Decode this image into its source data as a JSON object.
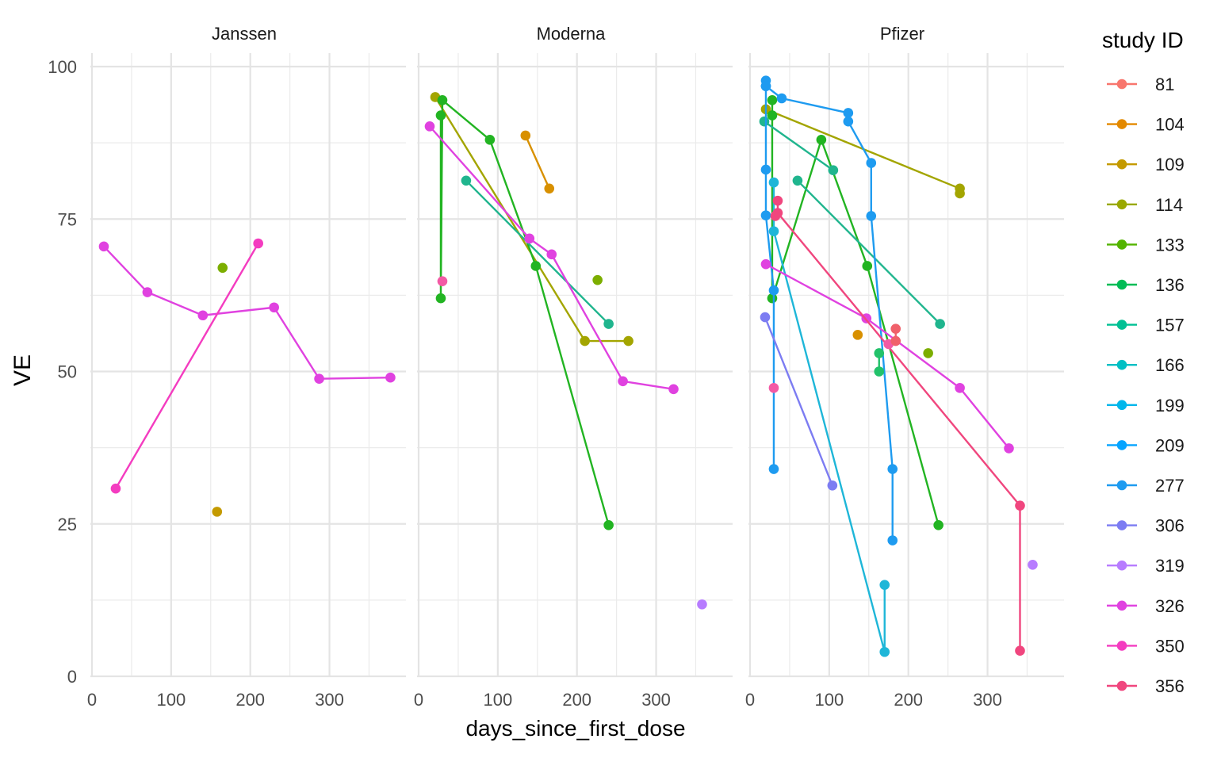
{
  "chart_data": {
    "type": "line",
    "facets": [
      "Janssen",
      "Moderna",
      "Pfizer"
    ],
    "xlabel": "days_since_first_dose",
    "ylabel": "VE",
    "xlim": [
      0,
      395
    ],
    "ylim": [
      0,
      100
    ],
    "x_ticks": [
      0,
      100,
      200,
      300
    ],
    "y_ticks": [
      0,
      25,
      50,
      75,
      100
    ],
    "grid": true,
    "legend": {
      "title": "study ID",
      "position": "right",
      "entries": [
        {
          "id": "81",
          "color": "#F8766D"
        },
        {
          "id": "104",
          "color": "#E38900"
        },
        {
          "id": "109",
          "color": "#C49A00"
        },
        {
          "id": "114",
          "color": "#99A800"
        },
        {
          "id": "133",
          "color": "#53B400"
        },
        {
          "id": "136",
          "color": "#00BC56"
        },
        {
          "id": "157",
          "color": "#00C094"
        },
        {
          "id": "166",
          "color": "#00BFC4"
        },
        {
          "id": "199",
          "color": "#00B6EB"
        },
        {
          "id": "209",
          "color": "#06A4FF"
        },
        {
          "id": "277",
          "color": "#A58AFF"
        },
        {
          "id": "306",
          "color": "#DF70F8"
        },
        {
          "id": "319",
          "color": "#FB61D7"
        },
        {
          "id": "326",
          "color": "#FF66A8"
        },
        {
          "id": "350",
          "color": "#F8766D"
        },
        {
          "id": "356",
          "color": "#E38900"
        }
      ]
    },
    "series": [
      {
        "facet": "Janssen",
        "color": "#E042E0",
        "x": [
          15,
          70,
          140,
          230,
          287,
          377
        ],
        "y": [
          70.5,
          63,
          59.2,
          60.5,
          48.8,
          49
        ]
      },
      {
        "facet": "Janssen",
        "color": "#F43CC0",
        "x": [
          30,
          210
        ],
        "y": [
          30.8,
          71
        ]
      },
      {
        "facet": "Janssen",
        "color": "#7CAE00",
        "x": [
          165
        ],
        "y": [
          67
        ]
      },
      {
        "facet": "Janssen",
        "color": "#C49A00",
        "x": [
          158
        ],
        "y": [
          27
        ]
      },
      {
        "facet": "Moderna",
        "color": "#D89000",
        "x": [
          135,
          165
        ],
        "y": [
          88.7,
          80
        ]
      },
      {
        "facet": "Moderna",
        "color": "#A3A500",
        "x": [
          21,
          210,
          265
        ],
        "y": [
          95,
          55,
          55
        ]
      },
      {
        "facet": "Moderna",
        "color": "#22B422",
        "x": [
          28,
          28,
          30,
          90,
          148,
          240
        ],
        "y": [
          92,
          62,
          94.5,
          88,
          67.3,
          24.8
        ]
      },
      {
        "facet": "Moderna",
        "color": "#20B58E",
        "x": [
          60,
          240
        ],
        "y": [
          81.3,
          57.8
        ]
      },
      {
        "facet": "Moderna",
        "color": "#E042E0",
        "x": [
          14,
          140,
          168,
          258,
          322
        ],
        "y": [
          90.2,
          71.8,
          69.2,
          48.4,
          47.1
        ]
      },
      {
        "facet": "Moderna",
        "color": "#F35AA5",
        "x": [
          30
        ],
        "y": [
          64.8
        ]
      },
      {
        "facet": "Moderna",
        "color": "#7CAE00",
        "x": [
          226
        ],
        "y": [
          65
        ]
      },
      {
        "facet": "Moderna",
        "color": "#B77CFF",
        "x": [
          358
        ],
        "y": [
          11.8
        ]
      },
      {
        "facet": "Pfizer",
        "color": "#A3A500",
        "x": [
          20,
          265,
          265
        ],
        "y": [
          93,
          80,
          79.2
        ]
      },
      {
        "facet": "Pfizer",
        "color": "#22B422",
        "x": [
          28,
          28,
          28,
          90,
          148,
          238
        ],
        "y": [
          94.5,
          92,
          62,
          88,
          67.3,
          24.8
        ]
      },
      {
        "facet": "Pfizer",
        "color": "#20B58E",
        "x": [
          60,
          240
        ],
        "y": [
          81.3,
          57.8
        ]
      },
      {
        "facet": "Pfizer",
        "color": "#20B58E",
        "x": [
          18,
          105
        ],
        "y": [
          91,
          83
        ]
      },
      {
        "facet": "Pfizer",
        "color": "#1EB6D8",
        "x": [
          30,
          30,
          170,
          170
        ],
        "y": [
          81,
          73,
          4,
          15
        ]
      },
      {
        "facet": "Pfizer",
        "color": "#1E9BF0",
        "x": [
          20,
          20,
          20,
          20,
          30,
          30
        ],
        "y": [
          97.7,
          96.8,
          83.1,
          75.6,
          63.3,
          34
        ]
      },
      {
        "facet": "Pfizer",
        "color": "#1E9BF0",
        "x": [
          20,
          40,
          124,
          124,
          153,
          153,
          180,
          180
        ],
        "y": [
          96.8,
          94.8,
          92.4,
          91,
          84.2,
          75.5,
          34,
          22.3
        ]
      },
      {
        "facet": "Pfizer",
        "color": "#7C7CF2",
        "x": [
          19,
          104
        ],
        "y": [
          58.9,
          31.3
        ]
      },
      {
        "facet": "Pfizer",
        "color": "#E042E0",
        "x": [
          20,
          147,
          265,
          327
        ],
        "y": [
          67.6,
          58.7,
          47.3,
          37.4
        ]
      },
      {
        "facet": "Pfizer",
        "color": "#F0467E",
        "x": [
          35,
          35,
          341,
          341
        ],
        "y": [
          78,
          76,
          28,
          4.2
        ]
      },
      {
        "facet": "Pfizer",
        "color": "#F0467E",
        "x": [
          32
        ],
        "y": [
          75.5
        ]
      },
      {
        "facet": "Pfizer",
        "color": "#F35AA5",
        "x": [
          30
        ],
        "y": [
          47.3
        ]
      },
      {
        "facet": "Pfizer",
        "color": "#F35AA5",
        "x": [
          175
        ],
        "y": [
          54.5
        ]
      },
      {
        "facet": "Pfizer",
        "color": "#F0606A",
        "x": [
          184,
          184
        ],
        "y": [
          57,
          55
        ]
      },
      {
        "facet": "Pfizer",
        "color": "#D89000",
        "x": [
          136
        ],
        "y": [
          56
        ]
      },
      {
        "facet": "Pfizer",
        "color": "#7CAE00",
        "x": [
          225
        ],
        "y": [
          53
        ]
      },
      {
        "facet": "Pfizer",
        "color": "#22C26A",
        "x": [
          163,
          163
        ],
        "y": [
          53,
          50
        ]
      },
      {
        "facet": "Pfizer",
        "color": "#B77CFF",
        "x": [
          357
        ],
        "y": [
          18.3
        ]
      }
    ]
  }
}
